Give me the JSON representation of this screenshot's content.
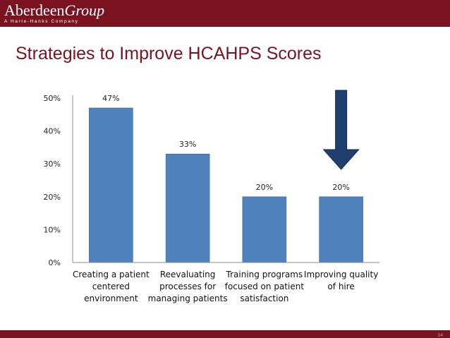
{
  "header": {
    "logo_part_a": "Aberdeen",
    "logo_part_b": "Group",
    "logo_subtitle": "A Harte-Hanks Company"
  },
  "slide": {
    "title": "Strategies to Improve HCAHPS Scores",
    "page_number": "14"
  },
  "colors": {
    "brand": "#7a1220",
    "bar": "#4f81bd",
    "arrow": "#1f3f6e"
  },
  "chart_data": {
    "type": "bar",
    "categories": [
      [
        "Creating a patient",
        "centered",
        "environment"
      ],
      [
        "Reevaluating",
        "processes for",
        "managing patients"
      ],
      [
        "Training programs",
        "focused on patient",
        "satisfaction"
      ],
      [
        "Improving quality",
        "of hire"
      ]
    ],
    "values": [
      47,
      33,
      20,
      20
    ],
    "value_labels": [
      "47%",
      "33%",
      "20%",
      "20%"
    ],
    "yticks": [
      0,
      10,
      20,
      30,
      40,
      50
    ],
    "ytick_labels": [
      "0%",
      "10%",
      "20%",
      "30%",
      "40%",
      "50%"
    ],
    "ylim": [
      0,
      50
    ],
    "grid": false,
    "highlight_arrow_category_index": 3
  }
}
